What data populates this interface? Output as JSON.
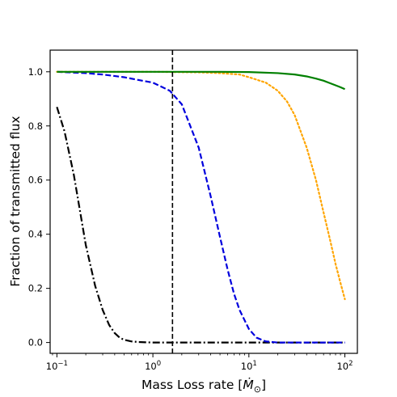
{
  "chart_data": {
    "type": "line",
    "title": "",
    "xlabel": "Mass Loss rate [",
    "xlabel_math": "Ṁ",
    "xlabel_math_sub": "⊙",
    "xlabel_close": "]",
    "ylabel": "Fraction of transmitted flux",
    "xscale": "log",
    "xlim": [
      0.085,
      135
    ],
    "ylim": [
      -0.04,
      1.08
    ],
    "x_ticks": [
      {
        "value": 0.1,
        "base": "10",
        "exp": "−1"
      },
      {
        "value": 1,
        "base": "10",
        "exp": "0"
      },
      {
        "value": 10,
        "base": "10",
        "exp": "1"
      },
      {
        "value": 100,
        "base": "10",
        "exp": "2"
      }
    ],
    "y_ticks": [
      {
        "value": 0.0,
        "label": "0.0"
      },
      {
        "value": 0.2,
        "label": "0.2"
      },
      {
        "value": 0.4,
        "label": "0.4"
      },
      {
        "value": 0.6,
        "label": "0.6"
      },
      {
        "value": 0.8,
        "label": "0.8"
      },
      {
        "value": 1.0,
        "label": "1.0"
      }
    ],
    "grid": false,
    "legend": "none",
    "vline": {
      "x": 1.6,
      "color": "#000000",
      "dash": "dashed"
    },
    "series": [
      {
        "color": "#000000",
        "style": "dashdot",
        "x": [
          0.1,
          0.12,
          0.15,
          0.2,
          0.25,
          0.3,
          0.35,
          0.4,
          0.45,
          0.5,
          0.6,
          0.7,
          0.8,
          1.0,
          1.6,
          10,
          100
        ],
        "y": [
          0.87,
          0.78,
          0.62,
          0.36,
          0.21,
          0.12,
          0.065,
          0.035,
          0.018,
          0.01,
          0.004,
          0.002,
          0.001,
          0.0,
          0.0,
          0.0,
          0.0
        ]
      },
      {
        "color": "#0000dd",
        "style": "dashed",
        "x": [
          0.1,
          0.2,
          0.3,
          0.5,
          0.7,
          1.0,
          1.5,
          2.0,
          3.0,
          4.0,
          5.0,
          6.0,
          7.0,
          8.0,
          10.0,
          12.0,
          15.0,
          20.0,
          30.0,
          100.0
        ],
        "y": [
          1.0,
          0.995,
          0.99,
          0.98,
          0.97,
          0.96,
          0.93,
          0.88,
          0.72,
          0.54,
          0.39,
          0.27,
          0.18,
          0.12,
          0.05,
          0.018,
          0.004,
          0.0,
          0.0,
          0.0
        ]
      },
      {
        "color": "#ffa500",
        "style": "dotted",
        "x": [
          0.1,
          1.0,
          3.0,
          5.0,
          8.0,
          10.0,
          15.0,
          20.0,
          25.0,
          30.0,
          40.0,
          50.0,
          60.0,
          70.0,
          80.0,
          90.0,
          100.0
        ],
        "y": [
          1.0,
          1.0,
          0.998,
          0.995,
          0.99,
          0.98,
          0.96,
          0.93,
          0.89,
          0.84,
          0.72,
          0.6,
          0.48,
          0.38,
          0.29,
          0.22,
          0.16
        ]
      },
      {
        "color": "#008000",
        "style": "solid",
        "x": [
          0.1,
          1.0,
          5.0,
          10.0,
          20.0,
          30.0,
          40.0,
          50.0,
          60.0,
          70.0,
          80.0,
          90.0,
          100.0
        ],
        "y": [
          1.0,
          1.0,
          1.0,
          0.999,
          0.995,
          0.99,
          0.983,
          0.975,
          0.967,
          0.958,
          0.95,
          0.943,
          0.936
        ]
      }
    ]
  }
}
